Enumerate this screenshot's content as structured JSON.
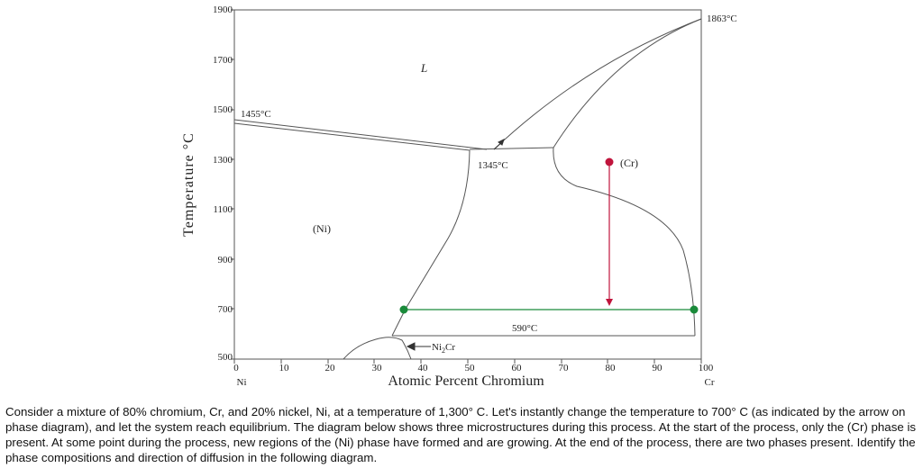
{
  "diagram": {
    "y_axis_label": "Temperature  °C",
    "x_axis_label": "Atomic Percent Chromium",
    "x_left_element": "Ni",
    "x_right_element": "Cr",
    "y_ticks": [
      "1900",
      "1700",
      "1500",
      "1300",
      "1100",
      "900",
      "700",
      "500"
    ],
    "x_ticks": [
      "0",
      "10",
      "20",
      "30",
      "40",
      "50",
      "60",
      "70",
      "80",
      "90",
      "100"
    ],
    "labels": {
      "liquid": "L",
      "ni_phase": "(Ni)",
      "cr_phase": "(Cr)",
      "ni_melting": "1455°C",
      "cr_melting": "1863°C",
      "eutectic": "1345°C",
      "ordering": "590°C",
      "ni2cr": "Ni",
      "ni2cr_sub": "2",
      "ni2cr_suffix": "Cr"
    },
    "colors": {
      "line": "#555555",
      "arrow": "#c0143c",
      "tie_line": "#1a8a3a"
    }
  },
  "caption": "Consider a mixture of 80% chromium, Cr, and 20% nickel, Ni, at a temperature of 1,300° C. Let's instantly change the temperature to 700° C (as indicated by the arrow on phase diagram), and let the system reach equilibrium. The diagram below shows three microstructures during this process. At the start of the process, only the (Cr) phase is present. At some point during the process, new regions of the (Ni) phase have formed and are growing. At the end of the process, there are two phases present. Identify the phase compositions and direction of diffusion in the following diagram."
}
